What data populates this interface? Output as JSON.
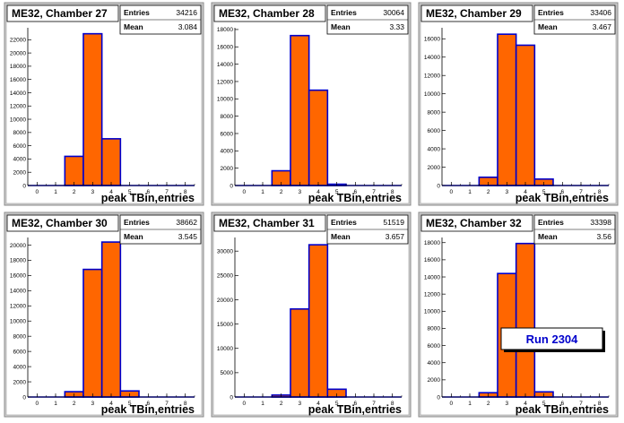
{
  "colors": {
    "bar_fill": "#ff6600",
    "bar_edge": "#0000cc",
    "frame_bg": "#d4d4d4",
    "run_text": "#0000cc"
  },
  "run_label": "Run 2304",
  "chart_data": [
    {
      "type": "bar",
      "title": "ME32, Chamber 27",
      "xlabel": "peak TBin,entries",
      "stats": {
        "entries_label": "Entries",
        "entries": "34216",
        "mean_label": "Mean",
        "mean": "3.084"
      },
      "x_ticks": [
        "0",
        "1",
        "2",
        "3",
        "4",
        "5",
        "6",
        "7",
        "8"
      ],
      "y_ticks": [
        "0",
        "2000",
        "4000",
        "6000",
        "8000",
        "10000",
        "12000",
        "14000",
        "16000",
        "18000",
        "20000",
        "22000"
      ],
      "xlim": [
        -0.5,
        8.5
      ],
      "ylim": [
        0,
        23800
      ],
      "bins": [
        [
          1.5,
          2.5
        ],
        [
          2.5,
          3.5
        ],
        [
          3.5,
          4.5
        ]
      ],
      "values": [
        4400,
        22900,
        7050
      ]
    },
    {
      "type": "bar",
      "title": "ME32, Chamber 28",
      "xlabel": "peak TBin,entries",
      "stats": {
        "entries_label": "Entries",
        "entries": "30064",
        "mean_label": "Mean",
        "mean": "3.33"
      },
      "x_ticks": [
        "0",
        "1",
        "2",
        "3",
        "4",
        "5",
        "6",
        "7",
        "8"
      ],
      "y_ticks": [
        "0",
        "2000",
        "4000",
        "6000",
        "8000",
        "10000",
        "12000",
        "14000",
        "16000",
        "18000"
      ],
      "xlim": [
        -0.5,
        8.5
      ],
      "ylim": [
        0,
        18200
      ],
      "bins": [
        [
          1.5,
          2.5
        ],
        [
          2.5,
          3.5
        ],
        [
          3.5,
          4.5
        ],
        [
          4.5,
          5.5
        ]
      ],
      "values": [
        1700,
        17300,
        11000,
        150
      ]
    },
    {
      "type": "bar",
      "title": "ME32, Chamber 29",
      "xlabel": "peak TBin,entries",
      "stats": {
        "entries_label": "Entries",
        "entries": "33406",
        "mean_label": "Mean",
        "mean": "3.467"
      },
      "x_ticks": [
        "0",
        "1",
        "2",
        "3",
        "4",
        "5",
        "6",
        "7",
        "8"
      ],
      "y_ticks": [
        "0",
        "2000",
        "4000",
        "6000",
        "8000",
        "10000",
        "12000",
        "14000",
        "16000"
      ],
      "xlim": [
        -0.5,
        8.5
      ],
      "ylim": [
        0,
        17200
      ],
      "bins": [
        [
          1.5,
          2.5
        ],
        [
          2.5,
          3.5
        ],
        [
          3.5,
          4.5
        ],
        [
          4.5,
          5.5
        ]
      ],
      "values": [
        900,
        16500,
        15300,
        700
      ]
    },
    {
      "type": "bar",
      "title": "ME32, Chamber 30",
      "xlabel": "peak TBin,entries",
      "stats": {
        "entries_label": "Entries",
        "entries": "38662",
        "mean_label": "Mean",
        "mean": "3.545"
      },
      "x_ticks": [
        "0",
        "1",
        "2",
        "3",
        "4",
        "5",
        "6",
        "7",
        "8"
      ],
      "y_ticks": [
        "0",
        "2000",
        "4000",
        "6000",
        "8000",
        "10000",
        "12000",
        "14000",
        "16000",
        "18000",
        "20000"
      ],
      "xlim": [
        -0.5,
        8.5
      ],
      "ylim": [
        0,
        21000
      ],
      "bins": [
        [
          1.5,
          2.5
        ],
        [
          2.5,
          3.5
        ],
        [
          3.5,
          4.5
        ],
        [
          4.5,
          5.5
        ]
      ],
      "values": [
        700,
        16800,
        20400,
        800
      ]
    },
    {
      "type": "bar",
      "title": "ME32, Chamber 31",
      "xlabel": "peak TBin,entries",
      "stats": {
        "entries_label": "Entries",
        "entries": "51519",
        "mean_label": "Mean",
        "mean": "3.657"
      },
      "x_ticks": [
        "0",
        "1",
        "2",
        "3",
        "4",
        "5",
        "6",
        "7",
        "8"
      ],
      "y_ticks": [
        "0",
        "5000",
        "10000",
        "15000",
        "20000",
        "25000",
        "30000"
      ],
      "xlim": [
        -0.5,
        8.5
      ],
      "ylim": [
        0,
        32800
      ],
      "bins": [
        [
          1.5,
          2.5
        ],
        [
          2.5,
          3.5
        ],
        [
          3.5,
          4.5
        ],
        [
          4.5,
          5.5
        ]
      ],
      "values": [
        400,
        18100,
        31300,
        1600
      ]
    },
    {
      "type": "bar",
      "title": "ME32, Chamber 32",
      "xlabel": "peak TBin,entries",
      "stats": {
        "entries_label": "Entries",
        "entries": "33398",
        "mean_label": "Mean",
        "mean": "3.56"
      },
      "x_ticks": [
        "0",
        "1",
        "2",
        "3",
        "4",
        "5",
        "6",
        "7",
        "8"
      ],
      "y_ticks": [
        "0",
        "2000",
        "4000",
        "6000",
        "8000",
        "10000",
        "12000",
        "14000",
        "16000",
        "18000"
      ],
      "xlim": [
        -0.5,
        8.5
      ],
      "ylim": [
        0,
        18600
      ],
      "bins": [
        [
          1.5,
          2.5
        ],
        [
          2.5,
          3.5
        ],
        [
          3.5,
          4.5
        ],
        [
          4.5,
          5.5
        ]
      ],
      "values": [
        500,
        14400,
        17900,
        600
      ]
    }
  ]
}
